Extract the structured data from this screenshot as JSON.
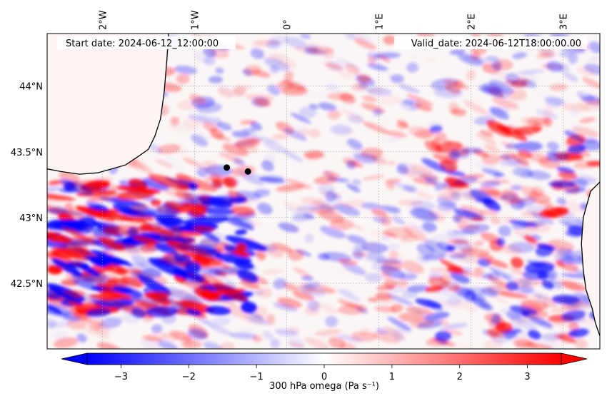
{
  "header": {
    "start_date": "Start date: 2024-06-12_12:00:00",
    "valid_date": "Valid_date: 2024-06-12T18:00:00.00"
  },
  "map": {
    "lon_range": [
      -2.6,
      3.4
    ],
    "lat_range": [
      42.0,
      44.4
    ],
    "lon_ticks": [
      {
        "value": -2,
        "label": "2°W"
      },
      {
        "value": -1,
        "label": "1°W"
      },
      {
        "value": 0,
        "label": "0°"
      },
      {
        "value": 1,
        "label": "1°E"
      },
      {
        "value": 2,
        "label": "2°E"
      },
      {
        "value": 3,
        "label": "3°E"
      }
    ],
    "lat_ticks": [
      {
        "value": 44.0,
        "label": "44°N"
      },
      {
        "value": 43.5,
        "label": "43.5°N"
      },
      {
        "value": 43.0,
        "label": "43°N"
      },
      {
        "value": 42.5,
        "label": "42.5°N"
      }
    ],
    "markers": [
      {
        "lon": -0.65,
        "lat": 43.38
      },
      {
        "lon": -0.42,
        "lat": 43.35
      }
    ],
    "coastline": [
      [
        -1.28,
        44.42
      ],
      [
        -1.3,
        44.2
      ],
      [
        -1.33,
        43.95
      ],
      [
        -1.37,
        43.75
      ],
      [
        -1.43,
        43.62
      ],
      [
        -1.5,
        43.52
      ],
      [
        -1.6,
        43.47
      ],
      [
        -1.75,
        43.4
      ],
      [
        -1.9,
        43.37
      ],
      [
        -2.05,
        43.34
      ],
      [
        -2.25,
        43.33
      ],
      [
        -2.45,
        43.35
      ],
      [
        -2.6,
        43.37
      ]
    ],
    "coastline_east": [
      [
        3.4,
        43.27
      ],
      [
        3.3,
        43.2
      ],
      [
        3.22,
        43.0
      ],
      [
        3.2,
        42.8
      ],
      [
        3.22,
        42.6
      ],
      [
        3.25,
        42.45
      ],
      [
        3.32,
        42.3
      ],
      [
        3.35,
        42.2
      ],
      [
        3.4,
        42.1
      ]
    ]
  },
  "colorbar": {
    "label": "300 hPa omega (Pa s⁻¹)",
    "vmin": -3.5,
    "vmax": 3.5,
    "ticks": [
      {
        "value": -3,
        "label": "−3"
      },
      {
        "value": -2,
        "label": "−2"
      },
      {
        "value": -1,
        "label": "−1"
      },
      {
        "value": 0,
        "label": "0"
      },
      {
        "value": 1,
        "label": "1"
      },
      {
        "value": 2,
        "label": "2"
      },
      {
        "value": 3,
        "label": "3"
      }
    ],
    "colors": {
      "low": "#0000ff",
      "mid": "#ffffff",
      "high": "#ff0000"
    }
  }
}
